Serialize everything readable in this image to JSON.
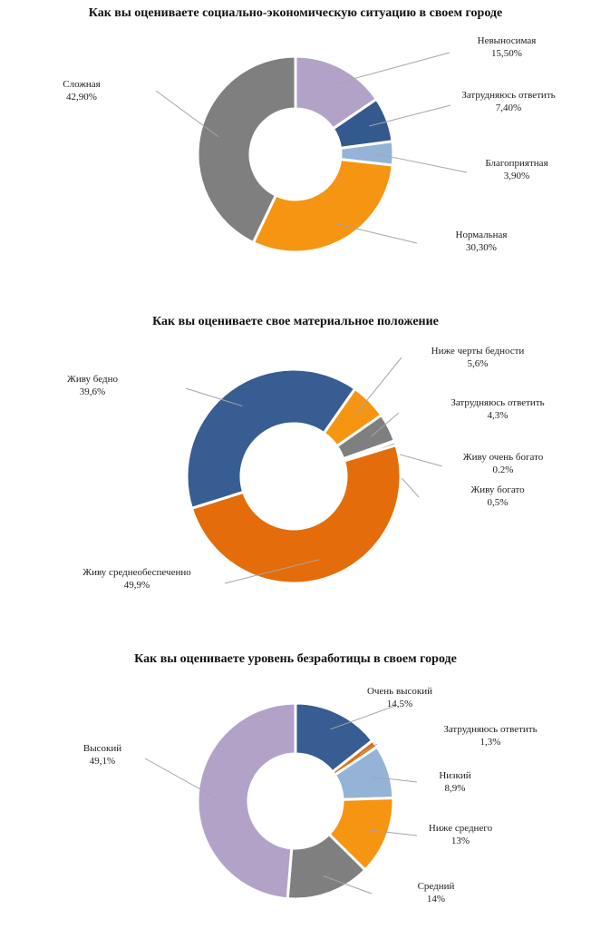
{
  "chart_data": [
    {
      "type": "donut",
      "title": "Как вы оцениваете социально-экономическую ситуацию в своем городе",
      "categories": [
        "Невыносимая",
        "Затрудняюсь ответить",
        "Благоприятная",
        "Нормальная",
        "Сложная"
      ],
      "values": [
        15.5,
        7.4,
        3.9,
        30.3,
        42.9
      ],
      "value_labels": [
        "15,50%",
        "7,40%",
        "3,90%",
        "30,30%",
        "42,90%"
      ],
      "colors": [
        "#b3a2c8",
        "#34598f",
        "#95b3d7",
        "#f59512",
        "#7f7f7f"
      ]
    },
    {
      "type": "donut",
      "title": "Как вы оцениваете свое материальное положение",
      "categories": [
        "Ниже черты бедности",
        "Затрудняюсь ответить",
        "Живу очень богато",
        "Живу богато",
        "Живу среднеобеспеченно",
        "Живу бедно"
      ],
      "values": [
        5.6,
        4.3,
        0.2,
        0.5,
        49.9,
        39.6
      ],
      "value_labels": [
        "5,6%",
        "4,3%",
        "0.2%",
        "0,5%",
        "49,9%",
        "39,6%"
      ],
      "colors": [
        "#f59512",
        "#7f7f7f",
        "#95b3d7",
        "#34598f",
        "#e46c0a",
        "#375d92"
      ]
    },
    {
      "type": "donut",
      "title": "Как вы оцениваете уровень безработицы в своем городе",
      "categories": [
        "Очень высокий",
        "Затрудняюсь ответить",
        "Низкий",
        "Ниже среднего",
        "Средний",
        "Высокий"
      ],
      "values": [
        14.5,
        1.3,
        8.9,
        13,
        14,
        49.1
      ],
      "value_labels": [
        "14,5%",
        "1,3%",
        "8,9%",
        "13%",
        "14%",
        "49,1%"
      ],
      "colors": [
        "#375d92",
        "#e46c0a",
        "#95b3d7",
        "#f59512",
        "#7f7f7f",
        "#b3a2c8"
      ]
    }
  ]
}
